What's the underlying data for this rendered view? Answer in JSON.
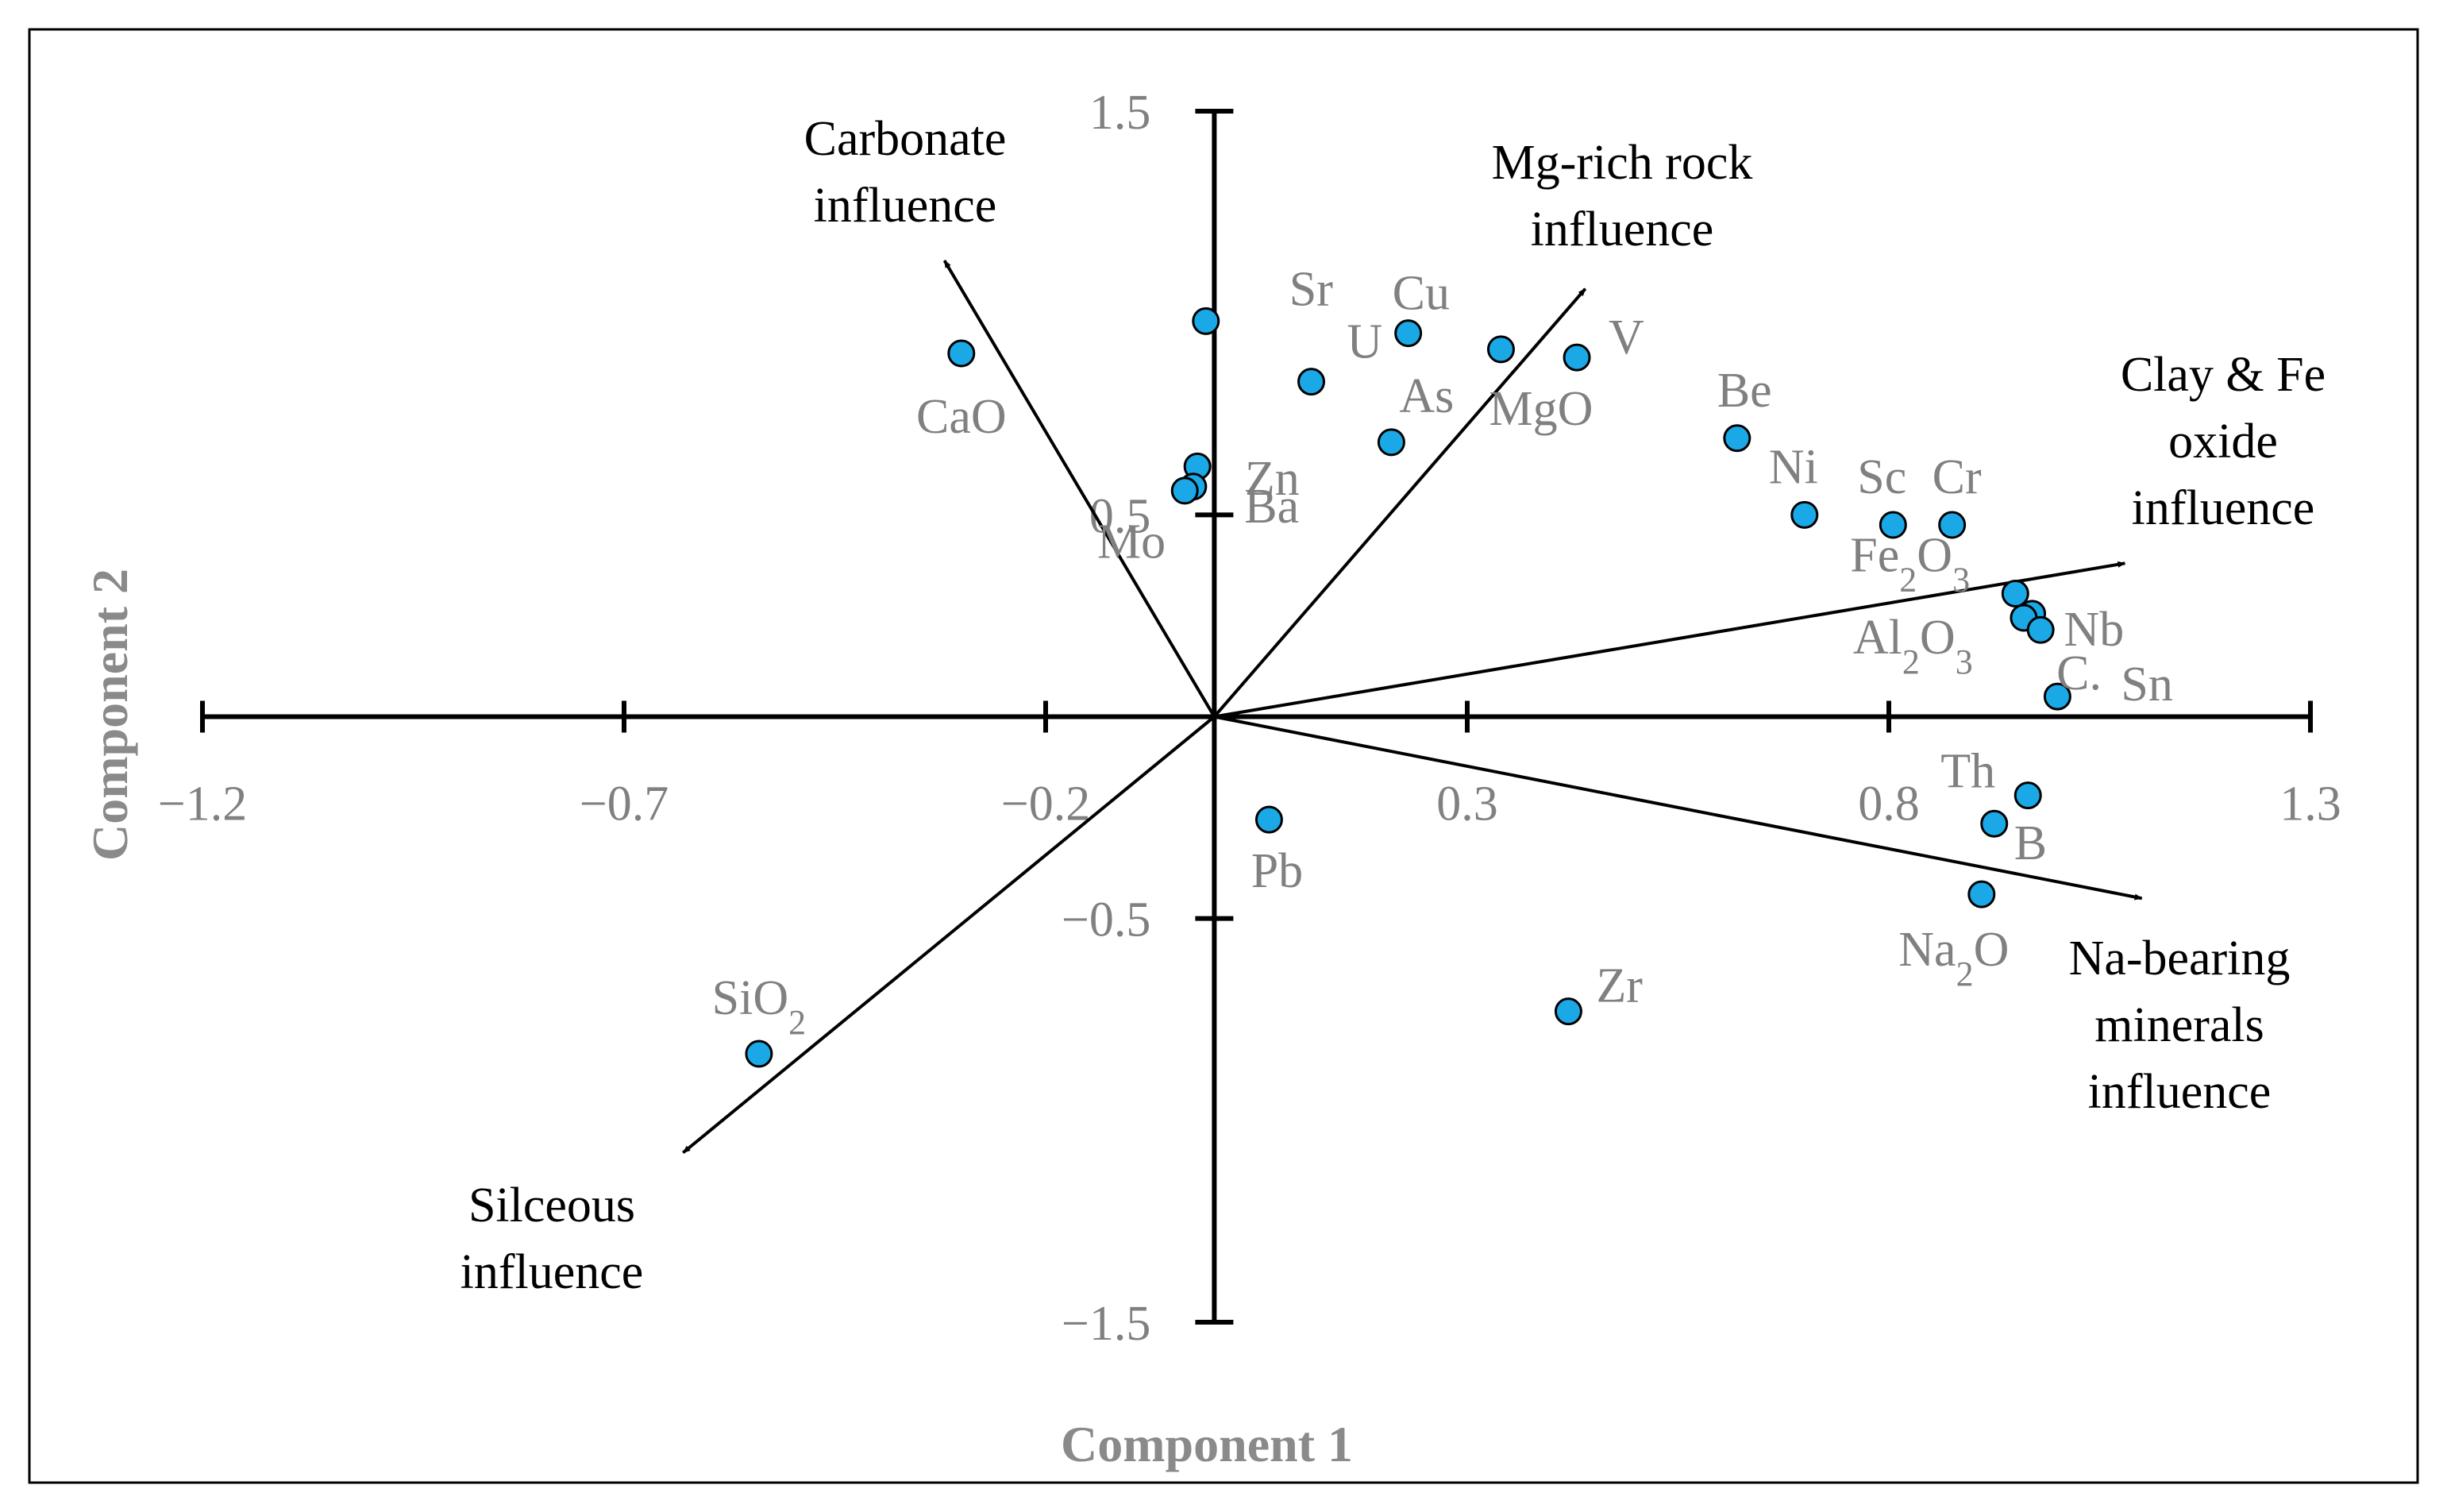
{
  "chart_data": {
    "type": "scatter",
    "title": "",
    "xlabel": "Component 1",
    "ylabel": "Component 2",
    "xlim": [
      -1.2,
      1.3
    ],
    "ylim": [
      -1.5,
      1.5
    ],
    "xticks": [
      {
        "value": -1.2,
        "label": "−1.2"
      },
      {
        "value": -0.7,
        "label": "−0.7"
      },
      {
        "value": -0.2,
        "label": "−0.2"
      },
      {
        "value": 0.3,
        "label": "0.3"
      },
      {
        "value": 0.8,
        "label": "0.8"
      },
      {
        "value": 1.3,
        "label": "1.3"
      }
    ],
    "yticks": [
      {
        "value": 1.5,
        "label": "1.5"
      },
      {
        "value": 0.5,
        "label": "0.5"
      },
      {
        "value": -0.5,
        "label": "−0.5"
      },
      {
        "value": -1.5,
        "label": "−1.5"
      }
    ],
    "points": [
      {
        "name": "CaO",
        "x": -0.3,
        "y": 0.9
      },
      {
        "name": "Sr",
        "x": -0.01,
        "y": 0.98
      },
      {
        "name": "Mo",
        "x": -0.02,
        "y": 0.62
      },
      {
        "name": "Zn",
        "x": -0.025,
        "y": 0.57
      },
      {
        "name": "Ba",
        "x": -0.035,
        "y": 0.56
      },
      {
        "name": "U",
        "x": 0.115,
        "y": 0.83
      },
      {
        "name": "Cu",
        "x": 0.23,
        "y": 0.95
      },
      {
        "name": "As",
        "x": 0.21,
        "y": 0.68
      },
      {
        "name": "MgO",
        "x": 0.34,
        "y": 0.91
      },
      {
        "name": "V",
        "x": 0.43,
        "y": 0.89
      },
      {
        "name": "Be",
        "x": 0.62,
        "y": 0.69
      },
      {
        "name": "Ni",
        "x": 0.7,
        "y": 0.5
      },
      {
        "name": "Sc",
        "x": 0.805,
        "y": 0.475
      },
      {
        "name": "Cr",
        "x": 0.875,
        "y": 0.475
      },
      {
        "name": "Fe2O3",
        "x": 0.95,
        "y": 0.305
      },
      {
        "name": "Nb",
        "x": 0.97,
        "y": 0.255
      },
      {
        "name": "Al2O3",
        "x": 0.96,
        "y": 0.245
      },
      {
        "name": "C.",
        "x": 0.98,
        "y": 0.215
      },
      {
        "name": "Sn",
        "x": 1.0,
        "y": 0.05
      },
      {
        "name": "Th",
        "x": 0.965,
        "y": -0.195
      },
      {
        "name": "B",
        "x": 0.925,
        "y": -0.265
      },
      {
        "name": "Na2O",
        "x": 0.91,
        "y": -0.44
      },
      {
        "name": "Pb",
        "x": 0.065,
        "y": -0.255
      },
      {
        "name": "Zr",
        "x": 0.42,
        "y": -0.73
      },
      {
        "name": "SiO2",
        "x": -0.54,
        "y": -0.835
      }
    ],
    "vectors": [
      {
        "name": "Carbonate influence",
        "lines": [
          "Carbonate",
          "influence"
        ],
        "x": -0.32,
        "y": 1.13
      },
      {
        "name": "Mg-rich rock influence",
        "lines": [
          "Mg-rich rock",
          "influence"
        ],
        "x": 0.44,
        "y": 1.06
      },
      {
        "name": "Clay & Fe oxide influence",
        "lines": [
          "Clay & Fe",
          "oxide",
          "influence"
        ],
        "x": 1.08,
        "y": 0.38
      },
      {
        "name": "Na-bearing minerals influence",
        "lines": [
          "Na-bearing",
          "minerals",
          "influence"
        ],
        "x": 1.1,
        "y": -0.45
      },
      {
        "name": "Silceous influence",
        "lines": [
          "Silceous",
          "influence"
        ],
        "x": -0.63,
        "y": -1.08
      }
    ]
  }
}
